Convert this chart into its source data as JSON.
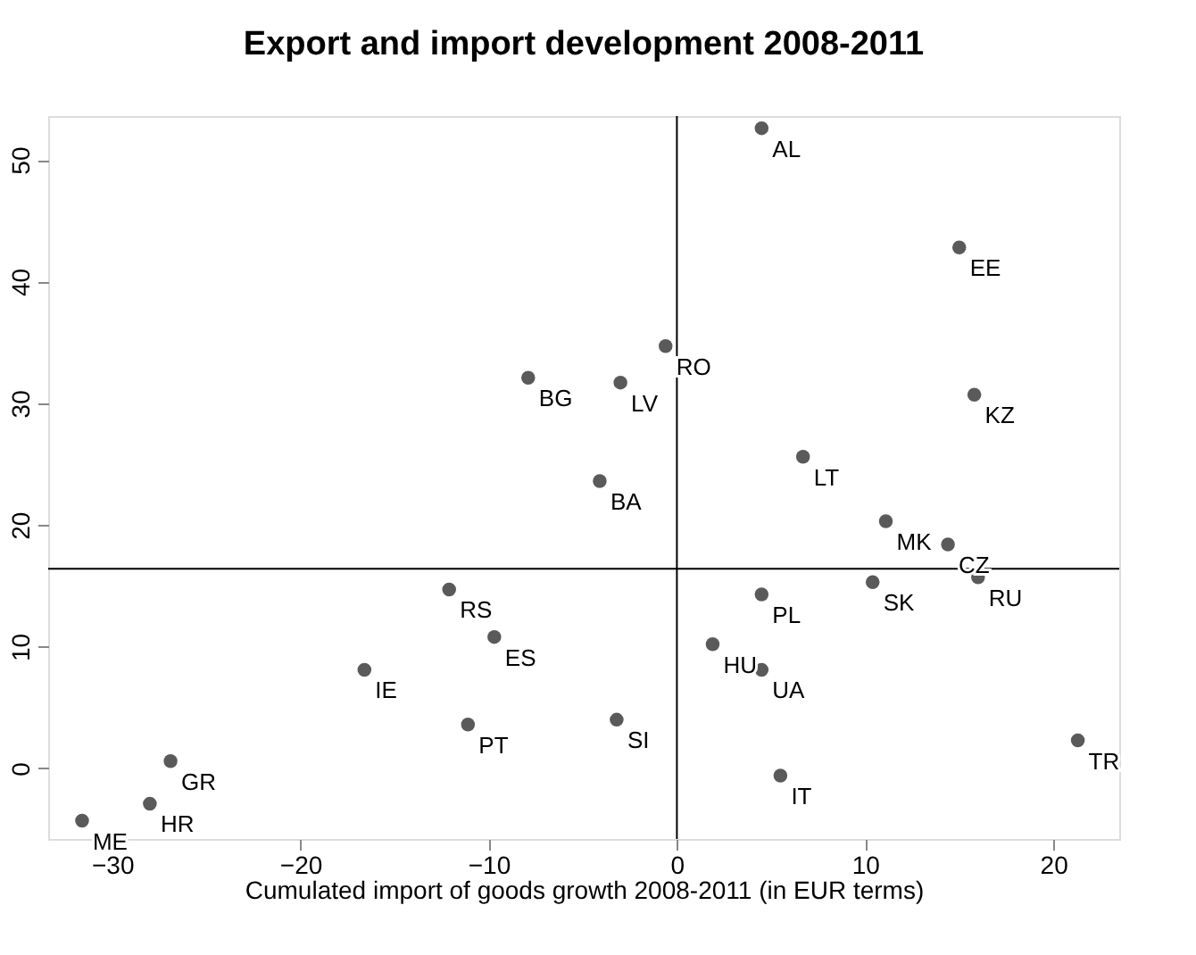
{
  "chart_data": {
    "type": "scatter",
    "title": "Export and import development 2008-2011",
    "xlabel": "Cumulated import of goods growth 2008-2011 (in EUR terms)",
    "x": [
      4.5,
      15.0,
      -0.6,
      -7.9,
      -3.0,
      15.8,
      6.7,
      -4.1,
      11.1,
      14.4,
      16.0,
      10.4,
      4.5,
      -12.1,
      -9.7,
      1.9,
      4.5,
      -16.6,
      -11.1,
      -3.2,
      21.3,
      5.5,
      -26.9,
      -28.0,
      -31.6
    ],
    "series": [
      {
        "color": "#5a5a5a",
        "values": [
          52.6,
          42.8,
          34.7,
          32.1,
          31.7,
          30.7,
          25.6,
          23.6,
          20.3,
          18.4,
          15.7,
          15.3,
          14.3,
          14.7,
          10.8,
          10.2,
          8.1,
          8.1,
          3.6,
          4.0,
          2.3,
          -0.6,
          0.6,
          -2.9,
          -4.3
        ]
      }
    ],
    "annotations": [
      {
        "text": "AL",
        "x": 4.5,
        "y": 52.6
      },
      {
        "text": "EE",
        "x": 15.0,
        "y": 42.8
      },
      {
        "text": "RO",
        "x": -0.6,
        "y": 34.7
      },
      {
        "text": "BG",
        "x": -7.9,
        "y": 32.1
      },
      {
        "text": "LV",
        "x": -3.0,
        "y": 31.7
      },
      {
        "text": "KZ",
        "x": 15.8,
        "y": 30.7
      },
      {
        "text": "LT",
        "x": 6.7,
        "y": 25.6
      },
      {
        "text": "BA",
        "x": -4.1,
        "y": 23.6
      },
      {
        "text": "MK",
        "x": 11.1,
        "y": 20.3
      },
      {
        "text": "CZ",
        "x": 14.4,
        "y": 18.4
      },
      {
        "text": "RU",
        "x": 16.0,
        "y": 15.7
      },
      {
        "text": "SK",
        "x": 10.4,
        "y": 15.3
      },
      {
        "text": "PL",
        "x": 4.5,
        "y": 14.3
      },
      {
        "text": "RS",
        "x": -12.1,
        "y": 14.7
      },
      {
        "text": "ES",
        "x": -9.7,
        "y": 10.8
      },
      {
        "text": "HU",
        "x": 1.9,
        "y": 10.2
      },
      {
        "text": "UA",
        "x": 4.5,
        "y": 8.1
      },
      {
        "text": "IE",
        "x": -16.6,
        "y": 8.1
      },
      {
        "text": "PT",
        "x": -11.1,
        "y": 3.6
      },
      {
        "text": "SI",
        "x": -3.2,
        "y": 4.0
      },
      {
        "text": "TR",
        "x": 21.3,
        "y": 2.3
      },
      {
        "text": "IT",
        "x": 5.5,
        "y": -0.6
      },
      {
        "text": "GR",
        "x": -26.9,
        "y": 0.6
      },
      {
        "text": "HR",
        "x": -28.0,
        "y": -2.9
      },
      {
        "text": "ME",
        "x": -31.6,
        "y": -4.3
      }
    ],
    "xlim": [
      -33.4,
      23.5
    ],
    "ylim": [
      -5.8,
      53.6
    ],
    "xticks": [
      -30,
      -20,
      -10,
      0,
      10,
      20
    ],
    "yticks": [
      0,
      10,
      20,
      30,
      40,
      50
    ],
    "ref_lines": [
      {
        "axis": "x",
        "value": 0
      },
      {
        "axis": "y",
        "value": 16.4
      }
    ],
    "grid": false,
    "marker": "circle"
  }
}
